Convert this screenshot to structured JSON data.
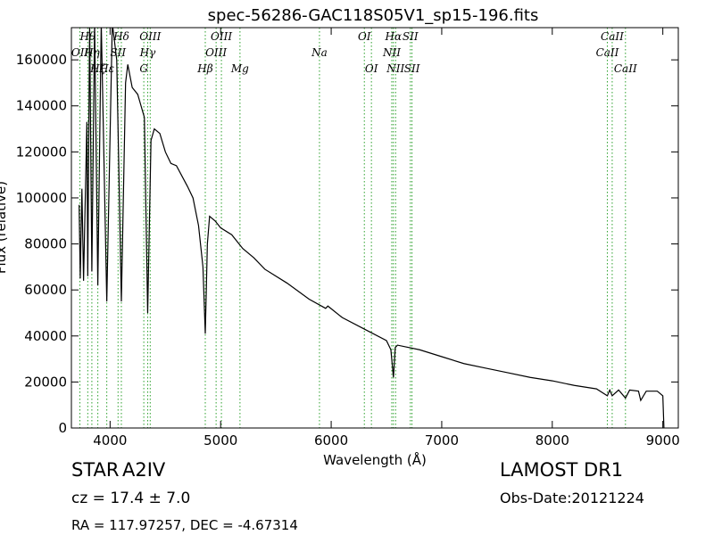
{
  "chart_data": {
    "type": "line",
    "title": "spec-56286-GAC118S05V1_sp15-196.fits",
    "x_label": "Wavelength (Å)",
    "y_label": "Flux (relative)",
    "color": "#000000",
    "line_color": "#2ca02c",
    "xlim": [
      3650,
      9140
    ],
    "ylim": [
      0,
      174000
    ],
    "xticks": [
      4000,
      5000,
      6000,
      7000,
      8000,
      9000
    ],
    "yticks": [
      0,
      20000,
      40000,
      60000,
      80000,
      100000,
      120000,
      140000,
      160000
    ],
    "x": [
      3720,
      3730,
      3745,
      3760,
      3790,
      3798,
      3815,
      3835,
      3860,
      3889,
      3920,
      3970,
      4020,
      4060,
      4102,
      4140,
      4160,
      4200,
      4250,
      4280,
      4310,
      4340,
      4370,
      4400,
      4450,
      4500,
      4550,
      4600,
      4700,
      4750,
      4800,
      4840,
      4861,
      4880,
      4900,
      4950,
      5000,
      5100,
      5200,
      5300,
      5400,
      5600,
      5800,
      5950,
      5970,
      6100,
      6300,
      6500,
      6540,
      6563,
      6580,
      6600,
      6800,
      7000,
      7200,
      7400,
      7600,
      7800,
      8000,
      8200,
      8400,
      8498,
      8520,
      8542,
      8600,
      8662,
      8700,
      8780,
      8800,
      8850,
      8950,
      9000,
      9010
    ],
    "values": [
      97000,
      65000,
      104000,
      64000,
      133000,
      66000,
      176000,
      68000,
      176000,
      62000,
      176000,
      55000,
      176000,
      160000,
      55000,
      150000,
      158000,
      148000,
      145000,
      140000,
      135000,
      50000,
      125000,
      130000,
      128000,
      120000,
      115000,
      114000,
      105000,
      100000,
      88000,
      70000,
      41000,
      80000,
      92000,
      90000,
      87000,
      84000,
      78000,
      74000,
      69000,
      63000,
      56000,
      52000,
      53000,
      48000,
      43000,
      38000,
      34000,
      22000,
      35000,
      36000,
      34000,
      31000,
      28000,
      26000,
      24000,
      22000,
      20500,
      18500,
      17000,
      14000,
      16500,
      14000,
      16500,
      13000,
      16500,
      16000,
      12000,
      16000,
      16000,
      14000,
      0
    ],
    "spectral_lines": [
      {
        "label": "OII",
        "x": 3727
      },
      {
        "label": "Hθ",
        "x": 3798
      },
      {
        "label": "Hη",
        "x": 3835
      },
      {
        "label": "Hζ",
        "x": 3889
      },
      {
        "label": "Hε",
        "x": 3970
      },
      {
        "label": "SII",
        "x": 4072
      },
      {
        "label": "Hδ",
        "x": 4102
      },
      {
        "label": "G",
        "x": 4305
      },
      {
        "label": "Hγ",
        "x": 4340
      },
      {
        "label": "OIII",
        "x": 4363
      },
      {
        "label": "Hβ",
        "x": 4861
      },
      {
        "label": "OIII",
        "x": 4959
      },
      {
        "label": "OIII",
        "x": 5007
      },
      {
        "label": "Mg",
        "x": 5175
      },
      {
        "label": "Na",
        "x": 5894
      },
      {
        "label": "OI",
        "x": 6300
      },
      {
        "label": "OI",
        "x": 6364
      },
      {
        "label": "NII",
        "x": 6548
      },
      {
        "label": "Hα",
        "x": 6563
      },
      {
        "label": "NII",
        "x": 6583
      },
      {
        "label": "SII",
        "x": 6716
      },
      {
        "label": "SII",
        "x": 6731
      },
      {
        "label": "CaII",
        "x": 8498
      },
      {
        "label": "CaII",
        "x": 8542
      },
      {
        "label": "CaII",
        "x": 8662
      }
    ]
  },
  "info": {
    "object_class": "STAR",
    "subclass": "A2IV",
    "redshift": "cz = 17.4 ± 7.0",
    "coordinates": "RA = 117.97257, DEC = -4.67314",
    "survey": "LAMOST DR1",
    "obs_date": "Obs-Date:20121224"
  }
}
